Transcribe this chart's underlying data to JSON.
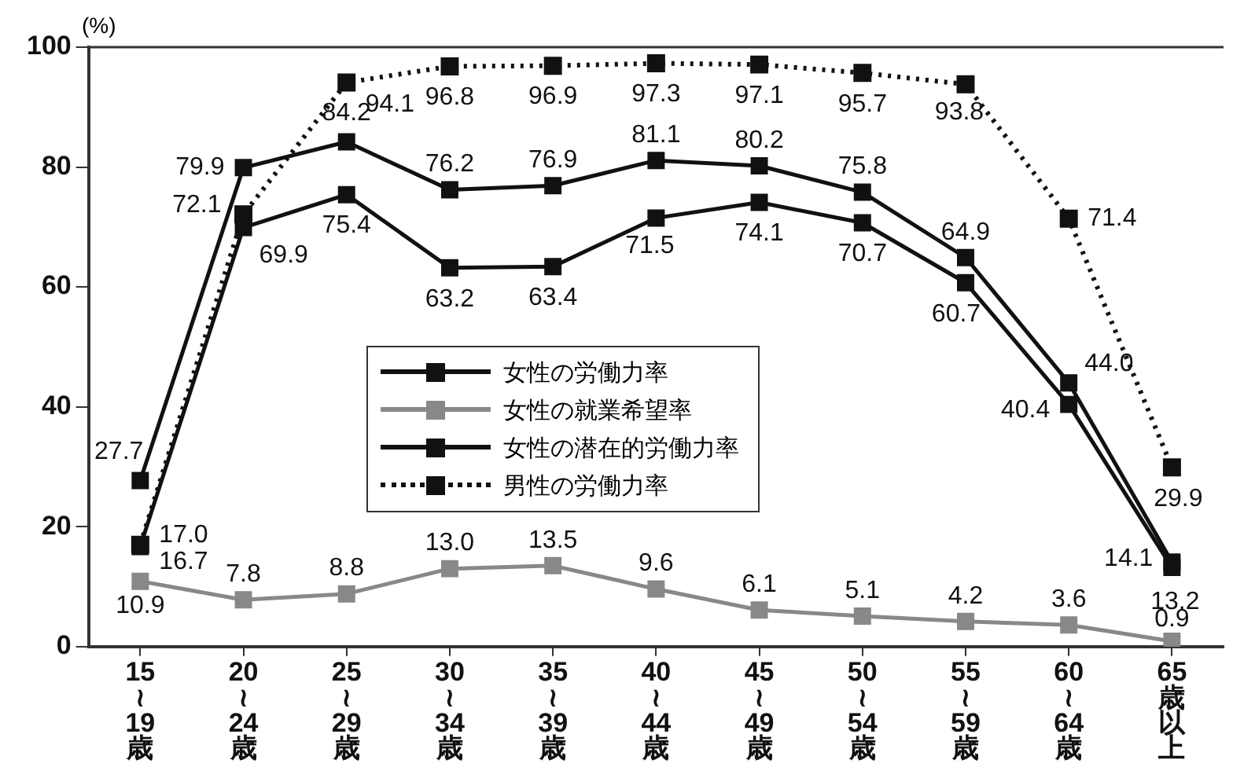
{
  "chart_data": {
    "type": "line",
    "ylabel": "(%)",
    "categories": [
      "15≀19歳",
      "20≀24歳",
      "25≀29歳",
      "30≀34歳",
      "35≀39歳",
      "40≀44歳",
      "45≀49歳",
      "50≀54歳",
      "55≀59歳",
      "60≀64歳",
      "65歳以上"
    ],
    "series": [
      {
        "name": "女性の労働力率",
        "color": "#111111",
        "line_style": "solid",
        "values": [
          16.7,
          69.9,
          75.4,
          63.2,
          63.4,
          71.5,
          74.1,
          70.7,
          60.7,
          40.4,
          13.2
        ],
        "value_labels": [
          "16.7",
          "69.9",
          "75.4",
          "63.2",
          "63.4",
          "71.5",
          "74.1",
          "70.7",
          "60.7",
          "40.4",
          "13.2"
        ]
      },
      {
        "name": "女性の就業希望率",
        "color": "#888888",
        "line_style": "solid",
        "values": [
          10.9,
          7.8,
          8.8,
          13.0,
          13.5,
          9.6,
          6.1,
          5.1,
          4.2,
          3.6,
          0.9
        ],
        "value_labels": [
          "10.9",
          "7.8",
          "8.8",
          "13.0",
          "13.5",
          "9.6",
          "6.1",
          "5.1",
          "4.2",
          "3.6",
          "0.9"
        ]
      },
      {
        "name": "女性の潜在的労働力率",
        "color": "#111111",
        "line_style": "solid",
        "values": [
          27.7,
          79.9,
          84.2,
          76.2,
          76.9,
          81.1,
          80.2,
          75.8,
          64.9,
          44.0,
          14.1
        ],
        "value_labels": [
          "27.7",
          "79.9",
          "84.2",
          "76.2",
          "76.9",
          "81.1",
          "80.2",
          "75.8",
          "64.9",
          "44.0",
          "14.1"
        ]
      },
      {
        "name": "男性の労働力率",
        "color": "#111111",
        "line_style": "dotted",
        "values": [
          17.0,
          72.1,
          94.1,
          96.8,
          96.9,
          97.3,
          97.1,
          95.7,
          93.8,
          71.4,
          29.9
        ],
        "value_labels": [
          "17.0",
          "72.1",
          "94.1",
          "96.8",
          "96.9",
          "97.3",
          "97.1",
          "95.7",
          "93.8",
          "71.4",
          "29.9"
        ]
      }
    ],
    "ylim": [
      0,
      100
    ],
    "yticks": [
      0,
      20,
      40,
      60,
      80,
      100
    ],
    "grid": false,
    "legend": "center",
    "marker": "square"
  }
}
